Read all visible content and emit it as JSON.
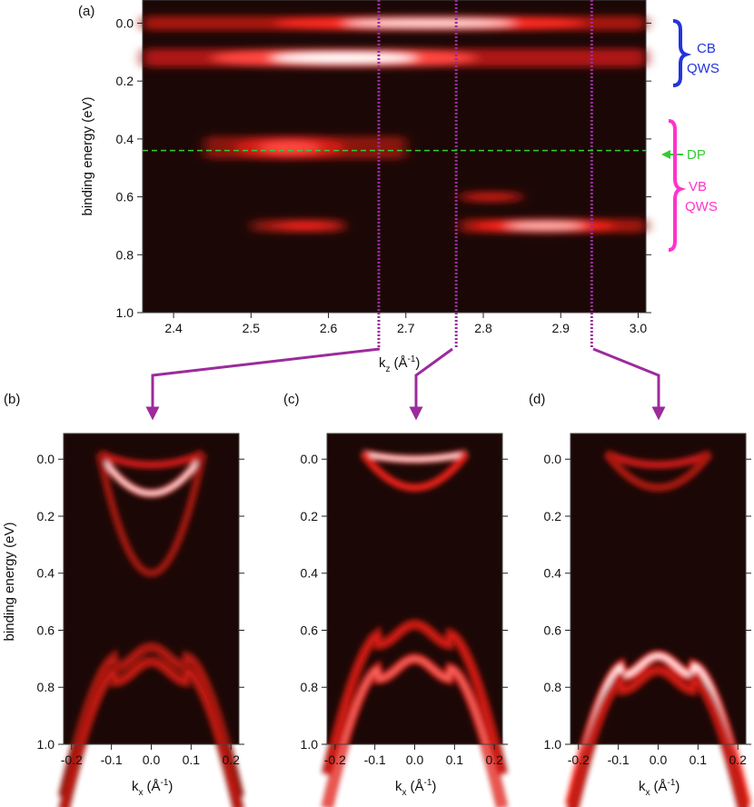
{
  "colors": {
    "background": "#ffffff",
    "map_dark": "#1b0806",
    "map_red": "#ff2a20",
    "map_white": "#ffffff",
    "cursor_line": "#9c2b9c",
    "dp_line": "#33cc33",
    "cb_bracket": "#2233dd",
    "vb_bracket": "#ff33cc"
  },
  "chart_data": [
    {
      "type": "heatmap",
      "panel_label": "(a)",
      "colormap": "black-red-white",
      "xlabel_main": "k",
      "xlabel_sub": "z",
      "xlabel_unit": "(Å",
      "xlabel_unit_sup": "-1",
      "xlabel_tail": ")",
      "ylabel": "binding energy (eV)",
      "xlim": [
        2.36,
        3.01
      ],
      "ylim": [
        1.0,
        -0.08
      ],
      "xticks": [
        "2.4",
        "2.5",
        "2.6",
        "2.7",
        "2.8",
        "2.9",
        "3.0"
      ],
      "xtick_values": [
        2.4,
        2.5,
        2.6,
        2.7,
        2.8,
        2.9,
        3.0
      ],
      "yticks": [
        "0.0",
        "0.2",
        "0.4",
        "0.6",
        "0.8",
        "1.0"
      ],
      "ytick_values": [
        0.0,
        0.2,
        0.4,
        0.6,
        0.8,
        1.0
      ],
      "bands": [
        {
          "k_from": 2.36,
          "k_to": 3.01,
          "E": 0.0,
          "k_center": 2.73,
          "k_width": 0.2,
          "E_width": 0.025,
          "intensity": 0.95
        },
        {
          "k_from": 2.36,
          "k_to": 3.01,
          "E": 0.12,
          "k_center": 2.62,
          "k_width": 0.17,
          "E_width": 0.032,
          "intensity": 1.0
        },
        {
          "k_from": 2.44,
          "k_to": 2.7,
          "E": 0.43,
          "k_center": 2.55,
          "k_width": 0.07,
          "E_width": 0.04,
          "intensity": 0.75
        },
        {
          "k_from": 2.5,
          "k_to": 2.62,
          "E": 0.7,
          "k_center": 2.57,
          "k_width": 0.05,
          "E_width": 0.022,
          "intensity": 0.65
        },
        {
          "k_from": 2.77,
          "k_to": 2.85,
          "E": 0.6,
          "k_center": 2.81,
          "k_width": 0.04,
          "E_width": 0.018,
          "intensity": 0.55
        },
        {
          "k_from": 2.77,
          "k_to": 3.01,
          "E": 0.7,
          "k_center": 2.88,
          "k_width": 0.09,
          "E_width": 0.024,
          "intensity": 0.9
        }
      ],
      "cursor_k": [
        2.665,
        2.765,
        2.94
      ],
      "dirac_point_E": 0.44,
      "annotations": {
        "cb_label_1": "CB",
        "cb_label_2": "QWS",
        "dp_label": "DP",
        "vb_label_1": "VB",
        "vb_label_2": "QWS"
      },
      "cb_bracket_E": [
        -0.03,
        0.2
      ],
      "vb_bracket_E": [
        0.32,
        0.78
      ]
    },
    {
      "type": "heatmap",
      "panel_label": "(b)",
      "kz_cut": 2.665,
      "xlabel_main": "k",
      "xlabel_sub": "x",
      "xlabel_unit": "(Å",
      "xlabel_unit_sup": "-1",
      "xlabel_tail": ")",
      "ylabel": "binding energy (eV)",
      "xlim": [
        -0.22,
        0.22
      ],
      "ylim": [
        1.0,
        -0.09
      ],
      "xticks": [
        "-0.2",
        "-0.1",
        "0.0",
        "0.1",
        "0.2"
      ],
      "xtick_values": [
        -0.2,
        -0.1,
        0.0,
        0.1,
        0.2
      ],
      "yticks": [
        "0.0",
        "0.2",
        "0.4",
        "0.6",
        "0.8",
        "1.0"
      ],
      "ytick_values": [
        0.0,
        0.2,
        0.4,
        0.6,
        0.8,
        1.0
      ],
      "cb_bands": [
        {
          "E0": 0.12,
          "intensity": 1.0
        },
        {
          "E0": 0.02,
          "intensity": 0.6
        },
        {
          "E0": 0.4,
          "intensity": 0.45
        }
      ],
      "vb_bands": [
        {
          "E0": 0.66,
          "intensity": 0.5
        },
        {
          "E0": 0.71,
          "intensity": 0.55
        }
      ]
    },
    {
      "type": "heatmap",
      "panel_label": "(c)",
      "kz_cut": 2.765,
      "xlabel_main": "k",
      "xlabel_sub": "x",
      "xlabel_unit": "(Å",
      "xlabel_unit_sup": "-1",
      "xlabel_tail": ")",
      "xlim": [
        -0.22,
        0.22
      ],
      "ylim": [
        1.0,
        -0.09
      ],
      "xticks": [
        "-0.2",
        "-0.1",
        "0.0",
        "0.1",
        "0.2"
      ],
      "xtick_values": [
        -0.2,
        -0.1,
        0.0,
        0.1,
        0.2
      ],
      "yticks": [
        "0.0",
        "0.2",
        "0.4",
        "0.6",
        "0.8",
        "1.0"
      ],
      "ytick_values": [
        0.0,
        0.2,
        0.4,
        0.6,
        0.8,
        1.0
      ],
      "cb_bands": [
        {
          "E0": 0.0,
          "intensity": 1.0
        },
        {
          "E0": 0.1,
          "intensity": 0.7
        }
      ],
      "vb_bands": [
        {
          "E0": 0.58,
          "intensity": 0.6
        },
        {
          "E0": 0.7,
          "intensity": 0.8
        }
      ]
    },
    {
      "type": "heatmap",
      "panel_label": "(d)",
      "kz_cut": 2.94,
      "xlabel_main": "k",
      "xlabel_sub": "x",
      "xlabel_unit": "(Å",
      "xlabel_unit_sup": "-1",
      "xlabel_tail": ")",
      "xlim": [
        -0.22,
        0.22
      ],
      "ylim": [
        1.0,
        -0.09
      ],
      "xticks": [
        "-0.2",
        "-0.1",
        "0.0",
        "0.1",
        "0.2"
      ],
      "xtick_values": [
        -0.2,
        -0.1,
        0.0,
        0.1,
        0.2
      ],
      "yticks": [
        "0.0",
        "0.2",
        "0.4",
        "0.6",
        "0.8",
        "1.0"
      ],
      "ytick_values": [
        0.0,
        0.2,
        0.4,
        0.6,
        0.8,
        1.0
      ],
      "cb_bands": [
        {
          "E0": 0.02,
          "intensity": 0.6
        },
        {
          "E0": 0.1,
          "intensity": 0.5
        }
      ],
      "vb_bands": [
        {
          "E0": 0.69,
          "intensity": 1.0
        },
        {
          "E0": 0.74,
          "intensity": 0.6
        }
      ]
    }
  ]
}
